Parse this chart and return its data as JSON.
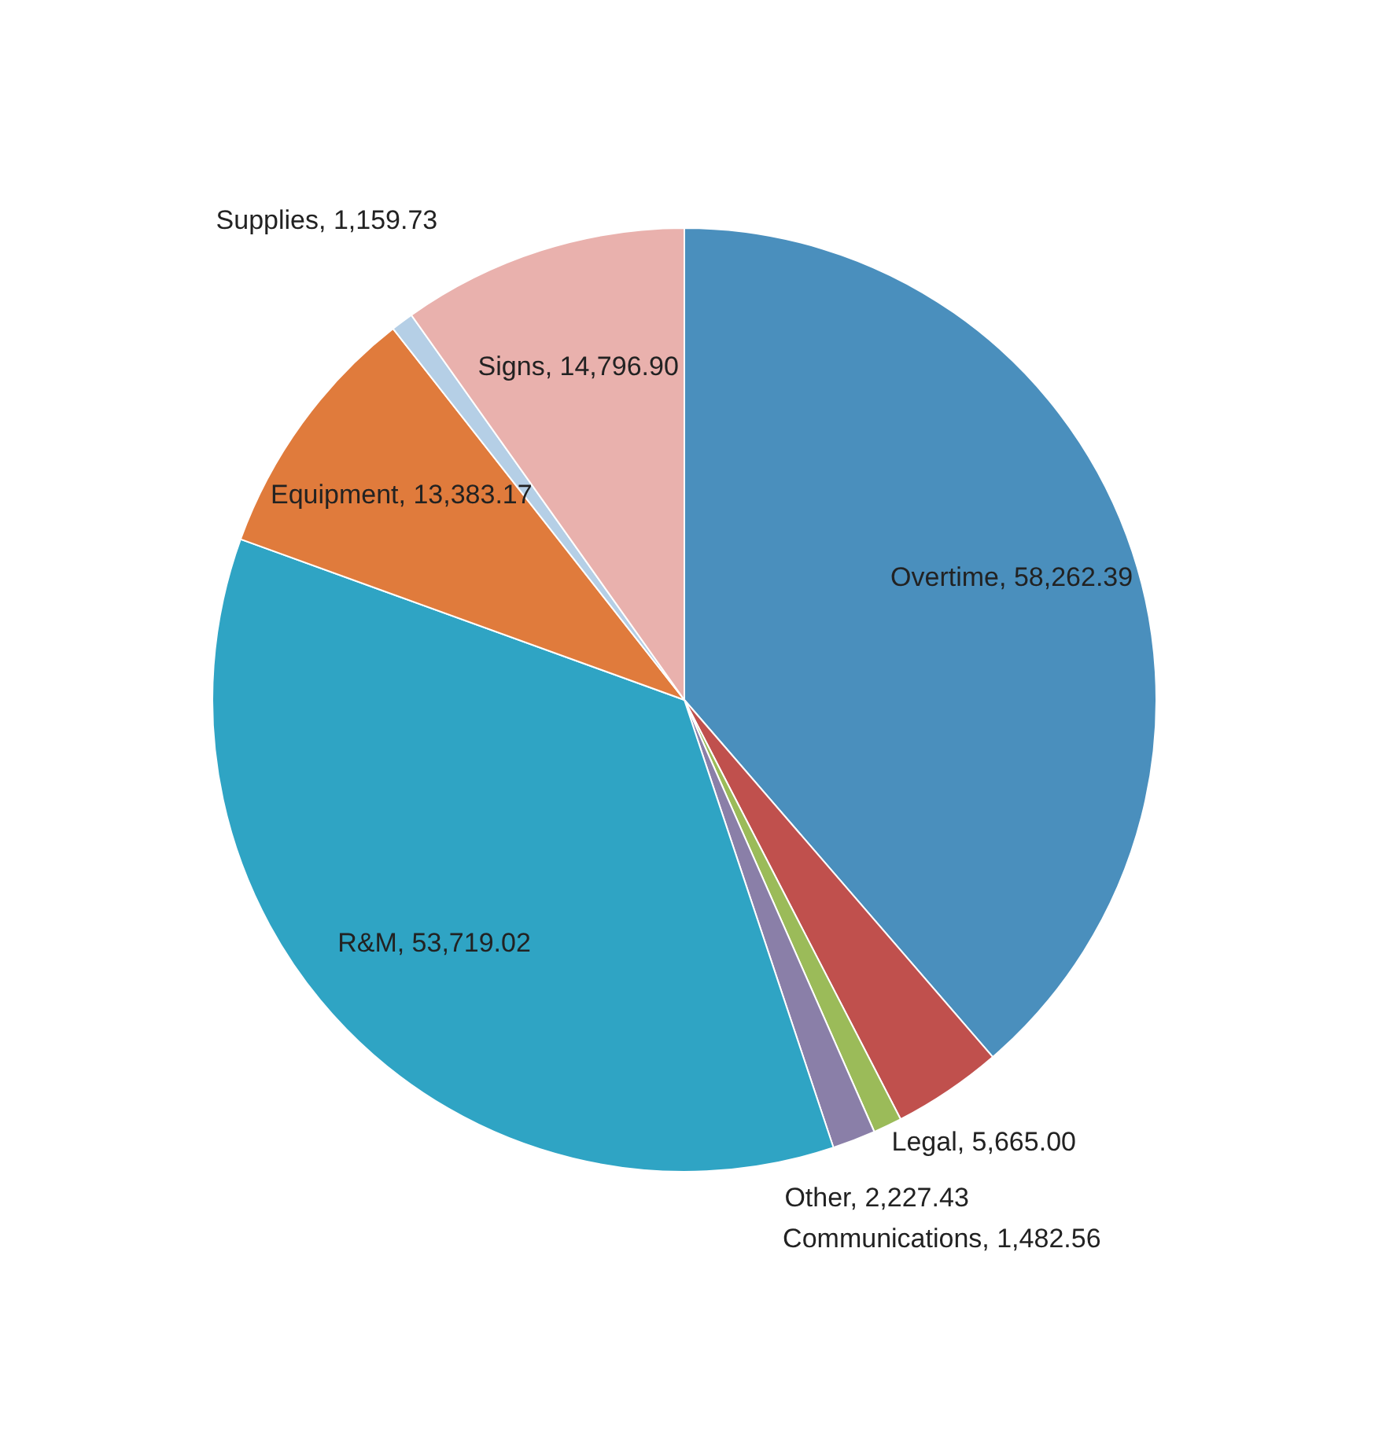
{
  "chart_data": {
    "type": "pie",
    "categories": [
      "Overtime",
      "Legal",
      "Communications",
      "Other",
      "R&M",
      "Equipment",
      "Supplies",
      "Signs"
    ],
    "values": [
      58262.39,
      5665.0,
      1482.56,
      2227.43,
      53719.02,
      13383.17,
      1159.73,
      14796.9
    ],
    "value_labels": [
      "58,262.39",
      "5,665.00",
      "1,482.56",
      "2,227.43",
      "53,719.02",
      "13,383.17",
      "1,159.73",
      "14,796.90"
    ],
    "colors": [
      "#4a8fbd",
      "#c0504d",
      "#9bbb59",
      "#8a7fa8",
      "#2fa4c4",
      "#e07b3c",
      "#b5cfe6",
      "#e9b1ad"
    ],
    "legend": false
  }
}
